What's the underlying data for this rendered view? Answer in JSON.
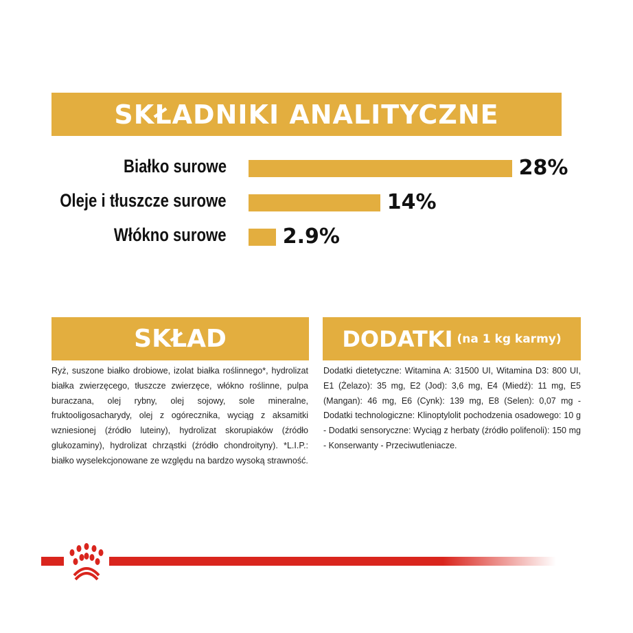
{
  "header": {
    "title": "SKŁADNIKI ANALITYCZNE"
  },
  "chart_data": {
    "type": "bar",
    "orientation": "horizontal",
    "title": "SKŁADNIKI ANALITYCZNE",
    "categories": [
      "Białko surowe",
      "Oleje i tłuszcze surowe",
      "Włókno surowe"
    ],
    "values": [
      28,
      14,
      2.9
    ],
    "value_labels": [
      "28%",
      "14%",
      "2.9%"
    ],
    "unit": "%",
    "bar_color": "#E3AE3F",
    "grid": false
  },
  "sklad": {
    "title": "SKŁAD",
    "text": "Ryż, suszone białko drobiowe, izolat białka roślinnego*, hydrolizat białka zwierzęcego, tłuszcze zwierzęce, włókno roślinne, pulpa buraczana, olej rybny, olej sojowy, sole mineralne, fruktooligosacharydy, olej z ogórecznika, wyciąg z aksamitki wzniesionej (źródło luteiny), hydrolizat skorupiaków (źródło glukozaminy), hydrolizat chrząstki (źródło chondroityny). *L.I.P.: białko wyselekcjonowane ze względu na bardzo wysoką strawność."
  },
  "dodatki": {
    "title": "DODATKI",
    "subtitle": "(na 1 kg karmy)",
    "text": "Dodatki dietetyczne: Witamina A: 31500 UI, Witamina D3: 800 UI, E1 (Żelazo): 35 mg, E2 (Jod): 3,6 mg, E4 (Miedź): 11 mg, E5 (Mangan): 46 mg, E6 (Cynk): 139 mg, E8 (Selen): 0,07 mg - Dodatki technologiczne: Klinoptylolit pochodzenia osadowego: 10 g - Dodatki sensoryczne: Wyciąg z herbaty (źródło polifenoli): 150 mg - Konserwanty - Przeciwutleniacze."
  },
  "colors": {
    "accent": "#E3AE3F",
    "brand_red": "#D9251D"
  },
  "footer": {
    "logo_icon": "royal-canin-crown-icon"
  }
}
